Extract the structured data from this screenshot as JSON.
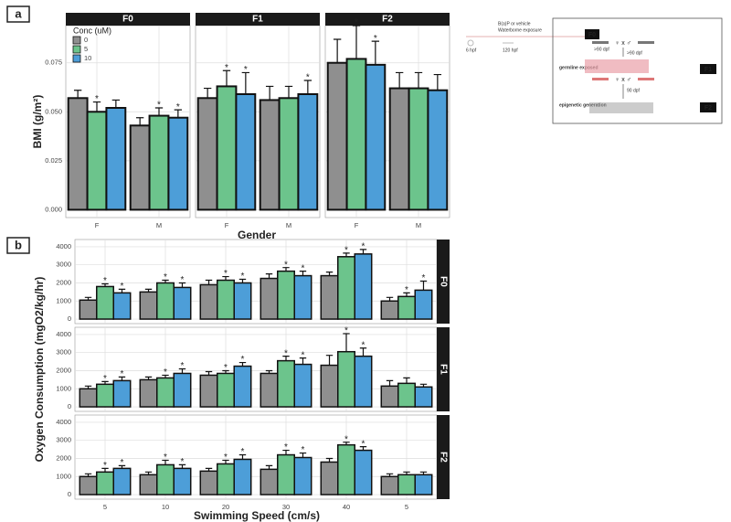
{
  "panel_labels": [
    "a",
    "b"
  ],
  "chart_data": [
    {
      "type": "bar",
      "facets": [
        "F0",
        "F1",
        "F2"
      ],
      "categories": [
        "F",
        "M"
      ],
      "x_label": "Gender",
      "y_label": "BMI (g/m²)",
      "legend_title": "Conc (uM)",
      "ylim": [
        -0.004,
        0.094
      ],
      "yticks": [
        {
          "value": 0,
          "label": "0.000"
        },
        {
          "value": 0.025,
          "label": "0.025"
        },
        {
          "value": 0.05,
          "label": "0.050"
        },
        {
          "value": 0.075,
          "label": "0.075"
        }
      ],
      "grid": true,
      "series": [
        {
          "name": "0",
          "color": "#8f8f8f",
          "values": [
            [
              0.057,
              0.043
            ],
            [
              0.057,
              0.056
            ],
            [
              0.075,
              0.062
            ]
          ],
          "errors": [
            [
              0.004,
              0.004
            ],
            [
              0.005,
              0.007
            ],
            [
              0.012,
              0.008
            ]
          ],
          "stars": [
            [
              null,
              null
            ],
            [
              null,
              null
            ],
            [
              null,
              null
            ]
          ]
        },
        {
          "name": "5",
          "color": "#6cc48c",
          "values": [
            [
              0.05,
              0.048
            ],
            [
              0.063,
              0.057
            ],
            [
              0.077,
              0.062
            ]
          ],
          "errors": [
            [
              0.005,
              0.004
            ],
            [
              0.008,
              0.006
            ],
            [
              0.017,
              0.008
            ]
          ],
          "stars": [
            [
              "*",
              "*"
            ],
            [
              "*",
              null
            ],
            [
              "*",
              null
            ]
          ]
        },
        {
          "name": "10",
          "color": "#4d9ed8",
          "values": [
            [
              0.052,
              0.047
            ],
            [
              0.059,
              0.059
            ],
            [
              0.074,
              0.061
            ]
          ],
          "errors": [
            [
              0.004,
              0.004
            ],
            [
              0.011,
              0.007
            ],
            [
              0.012,
              0.008
            ]
          ],
          "stars": [
            [
              null,
              "*"
            ],
            [
              "*",
              "*"
            ],
            [
              "*",
              null
            ]
          ]
        }
      ]
    },
    {
      "type": "bar",
      "facets": [
        "F0",
        "F1",
        "F2"
      ],
      "categories": [
        "5",
        "10",
        "20",
        "30",
        "40",
        "5"
      ],
      "x_label": "Swimming Speed (cm/s)",
      "y_label": "Oxygen Consumption (mgO2/kg/hr)",
      "ylim": [
        -250,
        4400
      ],
      "yticks": [
        0,
        1000,
        2000,
        3000,
        4000
      ],
      "grid": true,
      "series": [
        {
          "name": "0",
          "color": "#8f8f8f",
          "values": [
            [
              1050,
              1500,
              1900,
              2250,
              2400,
              1000
            ],
            [
              1000,
              1500,
              1750,
              1850,
              2300,
              1150
            ],
            [
              1000,
              1100,
              1300,
              1400,
              1800,
              1000
            ]
          ],
          "errors": [
            [
              150,
              150,
              250,
              250,
              200,
              200
            ],
            [
              150,
              150,
              200,
              150,
              550,
              300
            ],
            [
              150,
              150,
              150,
              200,
              200,
              150
            ]
          ],
          "stars": [
            [
              null,
              null,
              null,
              null,
              null,
              null
            ],
            [
              null,
              null,
              null,
              null,
              null,
              null
            ],
            [
              null,
              null,
              null,
              null,
              null,
              null
            ]
          ]
        },
        {
          "name": "5",
          "color": "#6cc48c",
          "values": [
            [
              1800,
              2000,
              2150,
              2650,
              3450,
              1250
            ],
            [
              1250,
              1600,
              1850,
              2550,
              3050,
              1300
            ],
            [
              1250,
              1650,
              1700,
              2200,
              2750,
              1100
            ]
          ],
          "errors": [
            [
              150,
              150,
              200,
              200,
              200,
              200
            ],
            [
              150,
              150,
              150,
              250,
              1000,
              300
            ],
            [
              200,
              250,
              200,
              250,
              150,
              150
            ]
          ],
          "stars": [
            [
              "*",
              "*",
              "*",
              "*",
              "*",
              "*"
            ],
            [
              "*",
              "*",
              "*",
              "*",
              "*",
              null
            ],
            [
              "*",
              "*",
              "*",
              "*",
              "*",
              null
            ]
          ]
        },
        {
          "name": "10",
          "color": "#4d9ed8",
          "values": [
            [
              1450,
              1750,
              2000,
              2400,
              3600,
              1600
            ],
            [
              1450,
              1850,
              2250,
              2350,
              2800,
              1100
            ],
            [
              1450,
              1450,
              1950,
              2050,
              2450,
              1100
            ]
          ],
          "errors": [
            [
              200,
              250,
              200,
              250,
              250,
              500
            ],
            [
              200,
              250,
              200,
              350,
              450,
              150
            ],
            [
              150,
              200,
              250,
              250,
              200,
              150
            ]
          ],
          "stars": [
            [
              "*",
              "*",
              "*",
              "*",
              "*",
              "*"
            ],
            [
              "*",
              "*",
              "*",
              "*",
              "*",
              null
            ],
            [
              "*",
              "*",
              "*",
              "*",
              "*",
              null
            ]
          ]
        }
      ]
    }
  ],
  "diagram": {
    "exposure": "B(a)P or vehicle",
    "exposure_route": "Waterborne exposure",
    "stage_start": "6 hpf",
    "stage_end": "120 hpf",
    "generations": [
      "F0",
      "F1",
      "F2"
    ],
    "ages": [
      ">90 dpf",
      ">90 dpf",
      "90 dpf"
    ],
    "cross": "♀ x ♂",
    "germline": "germline exposed",
    "epigenetic": "epigenetic generation"
  }
}
